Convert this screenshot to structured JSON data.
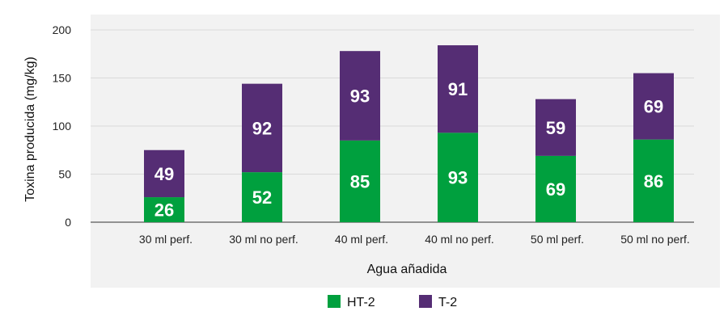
{
  "chart_data": {
    "type": "bar",
    "stacked": true,
    "categories": [
      "30 ml perf.",
      "30 ml no perf.",
      "40 ml perf.",
      "40 ml no perf.",
      "50 ml perf.",
      "50 ml no perf."
    ],
    "series": [
      {
        "name": "HT-2",
        "values": [
          26,
          52,
          85,
          93,
          69,
          86
        ],
        "color": "#00a03e"
      },
      {
        "name": "T-2",
        "values": [
          49,
          92,
          93,
          91,
          59,
          69
        ],
        "color": "#552d74"
      }
    ],
    "xlabel": "Agua añadida",
    "ylabel": "Toxina producida  (mg/kg)",
    "ylim": [
      0,
      200
    ],
    "yticks": [
      0,
      50,
      100,
      150,
      200
    ],
    "grid": true,
    "legend_position": "bottom",
    "panel_color": "#f2f2f2",
    "grid_color": "#d9d9d9"
  }
}
